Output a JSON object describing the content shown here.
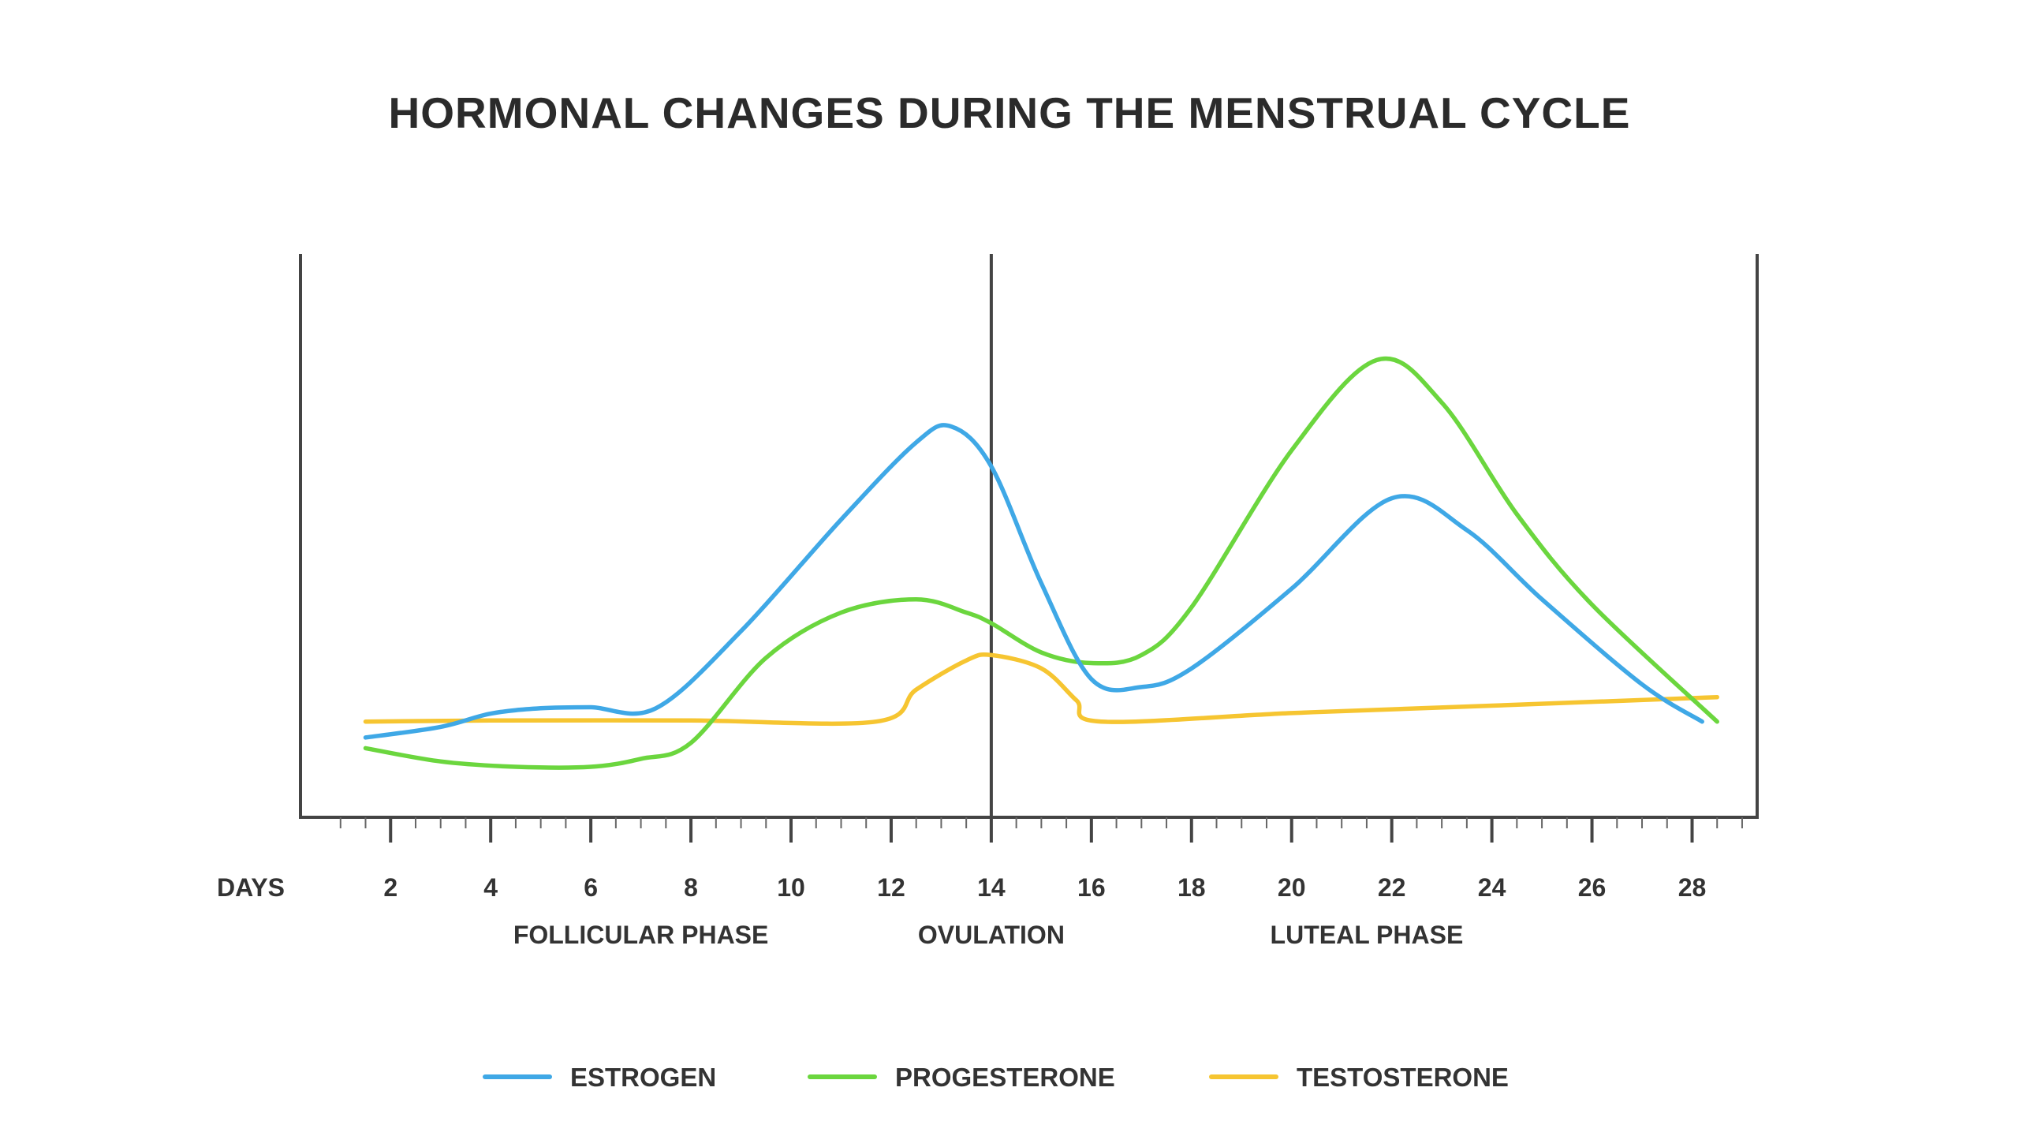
{
  "chart_data": {
    "type": "line",
    "title": "HORMONAL CHANGES DURING THE MENSTRUAL CYCLE",
    "xlabel": "DAYS",
    "ylabel": "",
    "xlim": [
      0.2,
      29.3
    ],
    "ylim": [
      0,
      100
    ],
    "x_ticks": [
      2,
      4,
      6,
      8,
      10,
      12,
      14,
      16,
      18,
      20,
      22,
      24,
      26,
      28
    ],
    "marker_line_x": 14,
    "phases": [
      {
        "label": "FOLLICULAR PHASE",
        "x": 7
      },
      {
        "label": "OVULATION",
        "x": 14
      },
      {
        "label": "LUTEAL PHASE",
        "x": 21.5
      }
    ],
    "series": [
      {
        "name": "ESTROGEN",
        "color": "#3fa8e6",
        "x": [
          1.5,
          3,
          4,
          5,
          6,
          7.3,
          9,
          11,
          12.5,
          13.2,
          14,
          15,
          16,
          17,
          18,
          20,
          22,
          23.5,
          25,
          27,
          28.2
        ],
        "y": [
          15,
          17,
          19.5,
          20.5,
          20.7,
          20.5,
          35,
          56,
          70.5,
          73.5,
          66,
          44,
          26,
          24.5,
          28,
          43,
          60,
          54,
          41,
          25,
          18
        ]
      },
      {
        "name": "PROGESTERONE",
        "color": "#6bd63e",
        "x": [
          1.5,
          3,
          4.5,
          6,
          7,
          8,
          9.5,
          11,
          12.5,
          13.5,
          14,
          15,
          16,
          17,
          18,
          20,
          21.7,
          23,
          24.5,
          26,
          28.5
        ],
        "y": [
          13,
          10.5,
          9.5,
          9.5,
          11,
          14,
          30,
          38.5,
          41,
          38.5,
          36.5,
          31,
          29,
          30.5,
          39.5,
          69,
          86,
          78,
          57,
          40,
          18
        ]
      },
      {
        "name": "TESTOSTERONE",
        "color": "#f6c531",
        "x": [
          1.5,
          4,
          8,
          11.7,
          12.5,
          13.5,
          14,
          15,
          15.7,
          16.2,
          20,
          24,
          28.5
        ],
        "y": [
          18,
          18.2,
          18.2,
          18,
          24,
          29.5,
          30.5,
          28,
          22,
          18,
          19.6,
          21,
          22.6
        ]
      }
    ],
    "legend": [
      {
        "label": "ESTROGEN",
        "color": "#3fa8e6"
      },
      {
        "label": "PROGESTERONE",
        "color": "#6bd63e"
      },
      {
        "label": "TESTOSTERONE",
        "color": "#f6c531"
      }
    ],
    "legend_position": "bottom-center"
  }
}
